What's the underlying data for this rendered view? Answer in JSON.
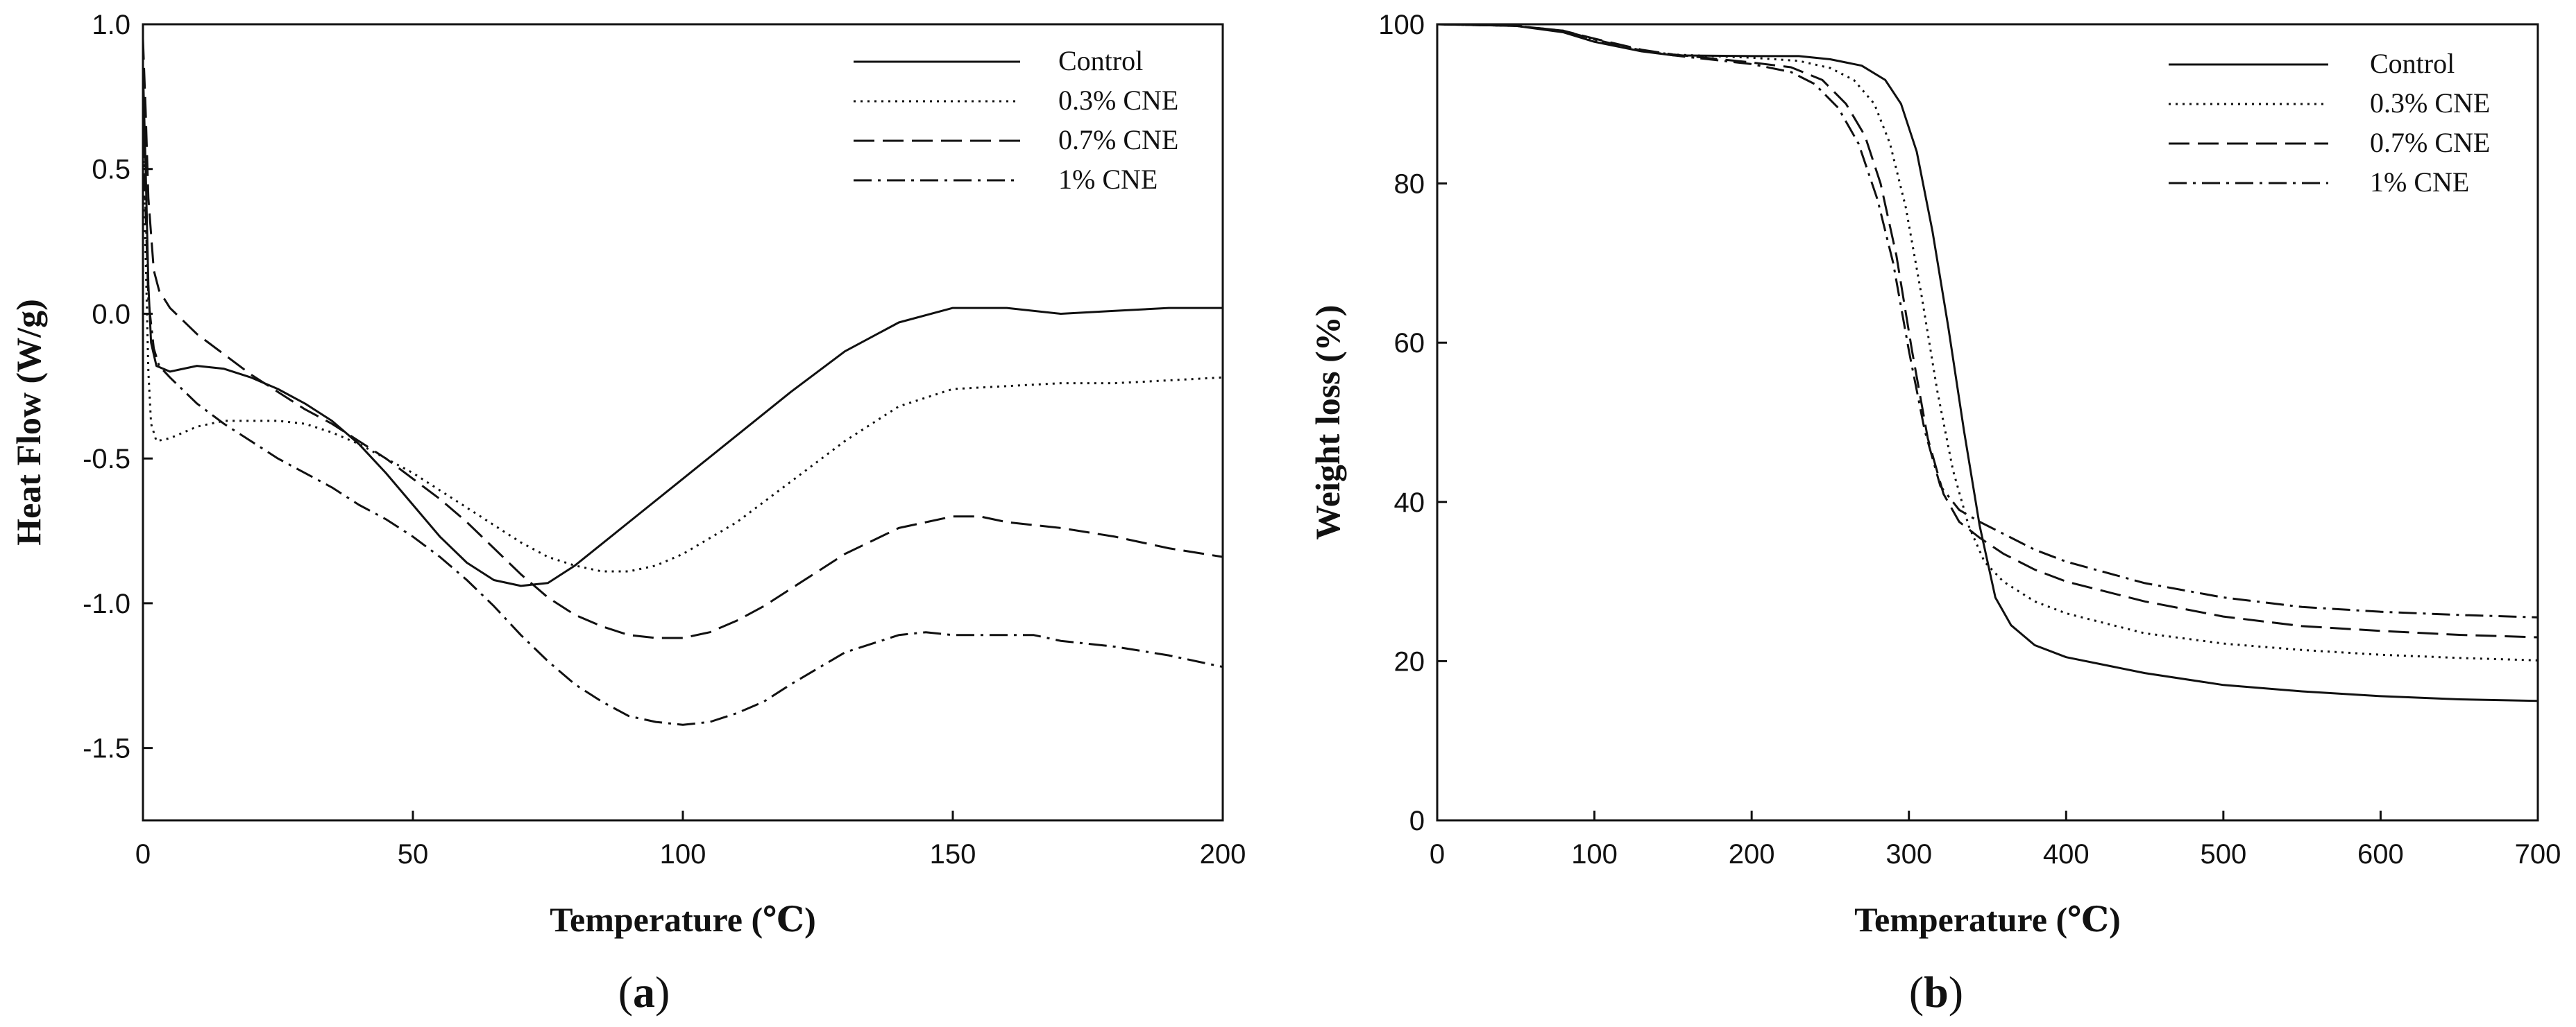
{
  "chart_data": [
    {
      "type": "line",
      "panel": "a",
      "panel_label": "a",
      "title": "",
      "xlabel": "Temperature (℃)",
      "ylabel": "Heat Flow (W/g)",
      "xlim": [
        0,
        200
      ],
      "ylim": [
        -1.75,
        1.0
      ],
      "xticks": [
        0,
        50,
        100,
        150,
        200
      ],
      "xtick_labels": [
        "0",
        "50",
        "100",
        "150",
        "200"
      ],
      "yticks": [
        1.0,
        0.5,
        0.0,
        -0.5,
        -1.0,
        -1.5
      ],
      "ytick_labels": [
        "1.0",
        "0.5",
        "0.0",
        "-0.5",
        "-1.0",
        "-1.5"
      ],
      "grid": false,
      "legend_position": "top-right",
      "series": [
        {
          "name": "Control",
          "style": "solid",
          "points": [
            [
              0,
              0.85
            ],
            [
              0.5,
              0.5
            ],
            [
              1,
              0.1
            ],
            [
              1.5,
              -0.1
            ],
            [
              2.5,
              -0.18
            ],
            [
              5,
              -0.2
            ],
            [
              10,
              -0.18
            ],
            [
              15,
              -0.19
            ],
            [
              20,
              -0.22
            ],
            [
              25,
              -0.26
            ],
            [
              30,
              -0.31
            ],
            [
              35,
              -0.37
            ],
            [
              40,
              -0.45
            ],
            [
              45,
              -0.55
            ],
            [
              50,
              -0.66
            ],
            [
              55,
              -0.77
            ],
            [
              60,
              -0.86
            ],
            [
              65,
              -0.92
            ],
            [
              70,
              -0.94
            ],
            [
              75,
              -0.93
            ],
            [
              80,
              -0.87
            ],
            [
              90,
              -0.72
            ],
            [
              100,
              -0.57
            ],
            [
              110,
              -0.42
            ],
            [
              120,
              -0.27
            ],
            [
              130,
              -0.13
            ],
            [
              140,
              -0.03
            ],
            [
              150,
              0.02
            ],
            [
              160,
              0.02
            ],
            [
              170,
              0.0
            ],
            [
              180,
              0.01
            ],
            [
              190,
              0.02
            ],
            [
              200,
              0.02
            ]
          ]
        },
        {
          "name": "0.3% CNE",
          "style": "dotted",
          "points": [
            [
              0,
              0.6
            ],
            [
              0.5,
              0.2
            ],
            [
              1,
              -0.2
            ],
            [
              1.5,
              -0.38
            ],
            [
              2.5,
              -0.44
            ],
            [
              5,
              -0.43
            ],
            [
              10,
              -0.39
            ],
            [
              15,
              -0.37
            ],
            [
              20,
              -0.37
            ],
            [
              25,
              -0.37
            ],
            [
              30,
              -0.38
            ],
            [
              35,
              -0.41
            ],
            [
              40,
              -0.45
            ],
            [
              45,
              -0.5
            ],
            [
              50,
              -0.55
            ],
            [
              55,
              -0.61
            ],
            [
              60,
              -0.67
            ],
            [
              65,
              -0.73
            ],
            [
              70,
              -0.79
            ],
            [
              75,
              -0.84
            ],
            [
              80,
              -0.87
            ],
            [
              85,
              -0.89
            ],
            [
              90,
              -0.89
            ],
            [
              95,
              -0.87
            ],
            [
              100,
              -0.83
            ],
            [
              110,
              -0.72
            ],
            [
              120,
              -0.58
            ],
            [
              130,
              -0.44
            ],
            [
              140,
              -0.32
            ],
            [
              150,
              -0.26
            ],
            [
              160,
              -0.25
            ],
            [
              170,
              -0.24
            ],
            [
              180,
              -0.24
            ],
            [
              190,
              -0.23
            ],
            [
              200,
              -0.22
            ]
          ]
        },
        {
          "name": "0.7% CNE",
          "style": "dashed",
          "points": [
            [
              0,
              0.95
            ],
            [
              0.5,
              0.7
            ],
            [
              1,
              0.4
            ],
            [
              2,
              0.15
            ],
            [
              3,
              0.08
            ],
            [
              5,
              0.02
            ],
            [
              10,
              -0.07
            ],
            [
              15,
              -0.14
            ],
            [
              20,
              -0.21
            ],
            [
              25,
              -0.27
            ],
            [
              30,
              -0.33
            ],
            [
              35,
              -0.38
            ],
            [
              40,
              -0.44
            ],
            [
              45,
              -0.5
            ],
            [
              50,
              -0.57
            ],
            [
              55,
              -0.64
            ],
            [
              60,
              -0.72
            ],
            [
              65,
              -0.81
            ],
            [
              70,
              -0.9
            ],
            [
              75,
              -0.98
            ],
            [
              80,
              -1.04
            ],
            [
              85,
              -1.08
            ],
            [
              90,
              -1.11
            ],
            [
              95,
              -1.12
            ],
            [
              100,
              -1.12
            ],
            [
              105,
              -1.1
            ],
            [
              110,
              -1.06
            ],
            [
              115,
              -1.01
            ],
            [
              120,
              -0.95
            ],
            [
              130,
              -0.83
            ],
            [
              140,
              -0.74
            ],
            [
              150,
              -0.7
            ],
            [
              155,
              -0.7
            ],
            [
              160,
              -0.72
            ],
            [
              170,
              -0.74
            ],
            [
              180,
              -0.77
            ],
            [
              190,
              -0.81
            ],
            [
              200,
              -0.84
            ]
          ]
        },
        {
          "name": "1% CNE",
          "style": "dashdot",
          "points": [
            [
              0,
              0.6
            ],
            [
              0.5,
              0.35
            ],
            [
              1,
              0.05
            ],
            [
              2,
              -0.12
            ],
            [
              3,
              -0.18
            ],
            [
              5,
              -0.22
            ],
            [
              10,
              -0.31
            ],
            [
              15,
              -0.38
            ],
            [
              20,
              -0.44
            ],
            [
              25,
              -0.5
            ],
            [
              30,
              -0.55
            ],
            [
              35,
              -0.6
            ],
            [
              40,
              -0.66
            ],
            [
              45,
              -0.71
            ],
            [
              50,
              -0.77
            ],
            [
              55,
              -0.84
            ],
            [
              60,
              -0.92
            ],
            [
              65,
              -1.01
            ],
            [
              70,
              -1.11
            ],
            [
              75,
              -1.2
            ],
            [
              80,
              -1.28
            ],
            [
              85,
              -1.34
            ],
            [
              90,
              -1.39
            ],
            [
              95,
              -1.41
            ],
            [
              100,
              -1.42
            ],
            [
              105,
              -1.41
            ],
            [
              110,
              -1.38
            ],
            [
              115,
              -1.34
            ],
            [
              120,
              -1.28
            ],
            [
              130,
              -1.17
            ],
            [
              140,
              -1.11
            ],
            [
              145,
              -1.1
            ],
            [
              150,
              -1.11
            ],
            [
              160,
              -1.11
            ],
            [
              165,
              -1.11
            ],
            [
              170,
              -1.13
            ],
            [
              180,
              -1.15
            ],
            [
              190,
              -1.18
            ],
            [
              200,
              -1.22
            ]
          ]
        }
      ]
    },
    {
      "type": "line",
      "panel": "b",
      "panel_label": "b",
      "title": "",
      "xlabel": "Temperature (℃)",
      "ylabel": "Weight loss (%)",
      "xlim": [
        0,
        700
      ],
      "ylim": [
        0,
        100
      ],
      "xticks": [
        0,
        100,
        200,
        300,
        400,
        500,
        600,
        700
      ],
      "xtick_labels": [
        "0",
        "100",
        "200",
        "300",
        "400",
        "500",
        "600",
        "700"
      ],
      "yticks": [
        0,
        20,
        40,
        60,
        80,
        100
      ],
      "ytick_labels": [
        "0",
        "20",
        "40",
        "60",
        "80",
        "100"
      ],
      "grid": false,
      "legend_position": "top-right",
      "series": [
        {
          "name": "Control",
          "style": "solid",
          "points": [
            [
              0,
              100
            ],
            [
              50,
              99.8
            ],
            [
              80,
              99.0
            ],
            [
              100,
              97.8
            ],
            [
              130,
              96.6
            ],
            [
              150,
              96.1
            ],
            [
              200,
              96.0
            ],
            [
              230,
              96.0
            ],
            [
              250,
              95.6
            ],
            [
              270,
              94.8
            ],
            [
              285,
              93.0
            ],
            [
              295,
              90.0
            ],
            [
              305,
              84.0
            ],
            [
              315,
              74.0
            ],
            [
              325,
              62.0
            ],
            [
              335,
              49.0
            ],
            [
              345,
              37.0
            ],
            [
              355,
              28.0
            ],
            [
              365,
              24.5
            ],
            [
              380,
              22.0
            ],
            [
              400,
              20.5
            ],
            [
              450,
              18.5
            ],
            [
              500,
              17.0
            ],
            [
              550,
              16.2
            ],
            [
              600,
              15.6
            ],
            [
              650,
              15.2
            ],
            [
              700,
              15.0
            ]
          ]
        },
        {
          "name": "0.3% CNE",
          "style": "dotted",
          "points": [
            [
              0,
              100
            ],
            [
              50,
              99.8
            ],
            [
              80,
              99.1
            ],
            [
              100,
              98.0
            ],
            [
              130,
              96.7
            ],
            [
              150,
              96.2
            ],
            [
              200,
              95.8
            ],
            [
              230,
              95.4
            ],
            [
              250,
              94.5
            ],
            [
              265,
              93.0
            ],
            [
              278,
              90.0
            ],
            [
              288,
              85.0
            ],
            [
              298,
              77.0
            ],
            [
              308,
              66.0
            ],
            [
              318,
              54.0
            ],
            [
              328,
              44.0
            ],
            [
              338,
              37.0
            ],
            [
              348,
              32.5
            ],
            [
              360,
              30.0
            ],
            [
              380,
              27.5
            ],
            [
              400,
              26.0
            ],
            [
              450,
              23.5
            ],
            [
              500,
              22.2
            ],
            [
              550,
              21.4
            ],
            [
              600,
              20.8
            ],
            [
              650,
              20.4
            ],
            [
              700,
              20.1
            ]
          ]
        },
        {
          "name": "0.7% CNE",
          "style": "dashed",
          "points": [
            [
              0,
              100
            ],
            [
              50,
              99.8
            ],
            [
              80,
              99.2
            ],
            [
              100,
              98.2
            ],
            [
              130,
              96.8
            ],
            [
              150,
              96.2
            ],
            [
              200,
              95.2
            ],
            [
              225,
              94.6
            ],
            [
              245,
              93.0
            ],
            [
              260,
              90.0
            ],
            [
              272,
              86.0
            ],
            [
              282,
              80.0
            ],
            [
              292,
              71.0
            ],
            [
              302,
              59.0
            ],
            [
              312,
              48.0
            ],
            [
              322,
              41.0
            ],
            [
              332,
              37.5
            ],
            [
              345,
              35.5
            ],
            [
              360,
              33.5
            ],
            [
              380,
              31.5
            ],
            [
              400,
              30.0
            ],
            [
              450,
              27.5
            ],
            [
              500,
              25.6
            ],
            [
              550,
              24.4
            ],
            [
              600,
              23.8
            ],
            [
              650,
              23.3
            ],
            [
              700,
              23.0
            ]
          ]
        },
        {
          "name": "1% CNE",
          "style": "dashdot",
          "points": [
            [
              0,
              100
            ],
            [
              50,
              99.8
            ],
            [
              80,
              99.2
            ],
            [
              100,
              98.1
            ],
            [
              130,
              96.7
            ],
            [
              150,
              96.1
            ],
            [
              200,
              95.0
            ],
            [
              225,
              94.0
            ],
            [
              240,
              92.5
            ],
            [
              255,
              89.5
            ],
            [
              268,
              85.0
            ],
            [
              280,
              78.0
            ],
            [
              290,
              70.0
            ],
            [
              300,
              59.0
            ],
            [
              310,
              49.0
            ],
            [
              320,
              42.0
            ],
            [
              332,
              39.0
            ],
            [
              345,
              37.5
            ],
            [
              360,
              36.0
            ],
            [
              380,
              34.0
            ],
            [
              400,
              32.5
            ],
            [
              450,
              29.8
            ],
            [
              500,
              28.0
            ],
            [
              550,
              26.8
            ],
            [
              600,
              26.2
            ],
            [
              650,
              25.8
            ],
            [
              700,
              25.5
            ]
          ]
        }
      ]
    }
  ]
}
